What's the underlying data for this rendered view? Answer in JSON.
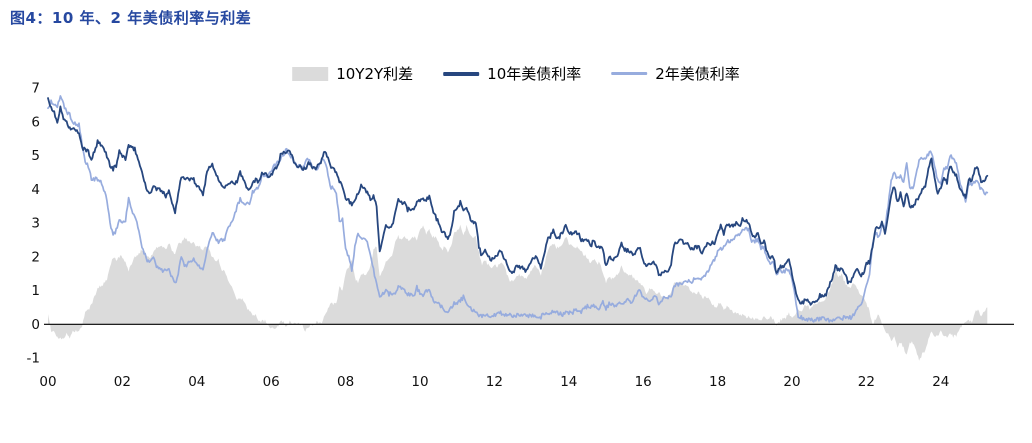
{
  "title": "图4：10 年、2 年美债利率与利差",
  "colors": {
    "title": "#2648A0",
    "axis_text": "#111111",
    "axis_line": "#000000",
    "background": "#ffffff"
  },
  "chart_data": {
    "type": "area+line",
    "title": "10 年、2 年美债利率与利差",
    "x_start_year": 2000,
    "x_frequency": "monthly",
    "x_end": "2025-04",
    "xlim": [
      2000,
      2025.4
    ],
    "ylim": [
      -1,
      7
    ],
    "yticks": [
      7,
      6,
      5,
      4,
      3,
      2,
      1,
      0,
      -1
    ],
    "xtick_labels": [
      "00",
      "02",
      "04",
      "06",
      "08",
      "10",
      "12",
      "14",
      "16",
      "18",
      "20",
      "22",
      "24"
    ],
    "grid": false,
    "legend_position": "top-center",
    "series": [
      {
        "name": "10Y2Y利差",
        "type": "area",
        "color": "#dbdbdb",
        "derived": "us10y_minus_us2y"
      },
      {
        "name": "10年美债利率",
        "type": "line",
        "color": "#27477F",
        "values": [
          6.7,
          6.4,
          6.3,
          6.0,
          6.4,
          6.1,
          6.0,
          5.8,
          5.8,
          5.7,
          5.7,
          5.2,
          5.2,
          5.1,
          4.9,
          5.1,
          5.4,
          5.3,
          5.2,
          5.0,
          4.7,
          4.6,
          4.7,
          5.1,
          5.0,
          4.9,
          5.3,
          5.2,
          5.2,
          4.9,
          4.6,
          4.3,
          3.9,
          3.9,
          4.1,
          4.0,
          4.0,
          3.9,
          3.8,
          4.0,
          3.6,
          3.3,
          3.9,
          4.4,
          4.3,
          4.3,
          4.3,
          4.3,
          4.1,
          4.0,
          3.8,
          4.4,
          4.7,
          4.7,
          4.5,
          4.3,
          4.1,
          4.1,
          4.2,
          4.2,
          4.2,
          4.2,
          4.5,
          4.3,
          4.1,
          4.0,
          4.2,
          4.3,
          4.2,
          4.5,
          4.5,
          4.4,
          4.4,
          4.6,
          4.7,
          5.0,
          5.1,
          5.1,
          5.1,
          4.9,
          4.7,
          4.7,
          4.6,
          4.6,
          4.8,
          4.7,
          4.6,
          4.7,
          4.8,
          5.1,
          5.0,
          4.7,
          4.6,
          4.5,
          4.2,
          4.1,
          3.7,
          3.7,
          3.5,
          3.7,
          3.9,
          4.1,
          4.0,
          3.9,
          3.7,
          3.8,
          3.5,
          2.2,
          2.5,
          2.9,
          2.8,
          2.9,
          3.3,
          3.7,
          3.6,
          3.6,
          3.4,
          3.4,
          3.4,
          3.6,
          3.7,
          3.7,
          3.7,
          3.8,
          3.4,
          3.2,
          3.0,
          2.7,
          2.7,
          2.5,
          2.8,
          3.3,
          3.4,
          3.6,
          3.4,
          3.5,
          3.2,
          3.0,
          3.0,
          2.3,
          2.0,
          2.2,
          2.0,
          1.9,
          2.0,
          2.0,
          2.2,
          2.0,
          1.8,
          1.6,
          1.5,
          1.7,
          1.7,
          1.7,
          1.6,
          1.7,
          1.9,
          2.0,
          1.9,
          1.7,
          2.0,
          2.5,
          2.6,
          2.8,
          2.6,
          2.6,
          2.7,
          3.0,
          2.7,
          2.7,
          2.7,
          2.7,
          2.5,
          2.5,
          2.5,
          2.3,
          2.5,
          2.3,
          2.3,
          2.2,
          1.7,
          2.0,
          1.9,
          2.0,
          2.1,
          2.4,
          2.2,
          2.2,
          2.1,
          2.1,
          2.2,
          2.3,
          1.9,
          1.7,
          1.8,
          1.8,
          1.8,
          1.5,
          1.5,
          1.6,
          1.6,
          1.8,
          2.4,
          2.4,
          2.5,
          2.4,
          2.4,
          2.3,
          2.2,
          2.3,
          2.3,
          2.1,
          2.3,
          2.4,
          2.4,
          2.4,
          2.7,
          2.9,
          2.7,
          3.0,
          2.9,
          2.9,
          3.0,
          2.9,
          3.1,
          3.1,
          3.0,
          2.7,
          2.6,
          2.7,
          2.4,
          2.5,
          2.1,
          2.0,
          2.0,
          1.5,
          1.7,
          1.7,
          1.8,
          1.9,
          1.5,
          1.1,
          0.7,
          0.6,
          0.7,
          0.7,
          0.55,
          0.7,
          0.7,
          0.85,
          0.85,
          0.9,
          1.1,
          1.4,
          1.7,
          1.6,
          1.6,
          1.5,
          1.25,
          1.3,
          1.5,
          1.6,
          1.45,
          1.5,
          1.8,
          1.85,
          2.3,
          2.9,
          2.85,
          3.0,
          2.7,
          3.2,
          3.8,
          4.1,
          3.6,
          3.9,
          3.5,
          3.9,
          3.5,
          3.45,
          3.65,
          3.8,
          4.0,
          4.1,
          4.6,
          4.9,
          4.3,
          3.9,
          4.0,
          4.3,
          4.2,
          4.7,
          4.5,
          4.4,
          4.1,
          3.9,
          3.75,
          4.3,
          4.2,
          4.6,
          4.6,
          4.2,
          4.25,
          4.4
        ]
      },
      {
        "name": "2年美债利率",
        "type": "line",
        "color": "#97ACDE",
        "values": [
          6.4,
          6.6,
          6.5,
          6.4,
          6.8,
          6.5,
          6.3,
          6.2,
          6.0,
          5.9,
          5.9,
          5.3,
          4.8,
          4.7,
          4.3,
          4.3,
          4.3,
          4.2,
          4.0,
          3.7,
          3.0,
          2.6,
          2.8,
          3.1,
          3.0,
          3.1,
          3.7,
          3.4,
          3.2,
          2.9,
          2.4,
          2.1,
          1.9,
          1.9,
          2.0,
          1.7,
          1.7,
          1.6,
          1.6,
          1.6,
          1.4,
          1.2,
          1.5,
          2.0,
          1.7,
          1.8,
          1.9,
          1.9,
          1.8,
          1.7,
          1.6,
          2.1,
          2.5,
          2.7,
          2.6,
          2.4,
          2.5,
          2.5,
          2.9,
          3.0,
          3.2,
          3.5,
          3.7,
          3.6,
          3.6,
          3.6,
          3.9,
          4.0,
          4.1,
          4.4,
          4.4,
          4.4,
          4.5,
          4.7,
          4.8,
          4.9,
          5.0,
          5.2,
          5.0,
          4.9,
          4.7,
          4.7,
          4.6,
          4.8,
          4.9,
          4.7,
          4.6,
          4.6,
          4.8,
          4.9,
          4.6,
          4.1,
          4.0,
          3.9,
          3.1,
          3.1,
          2.2,
          2.0,
          1.6,
          2.3,
          2.7,
          2.6,
          2.5,
          2.4,
          2.0,
          1.6,
          1.2,
          0.8,
          0.9,
          1.0,
          0.9,
          0.9,
          0.9,
          1.1,
          1.1,
          1.0,
          0.9,
          0.9,
          0.8,
          1.1,
          0.9,
          0.8,
          1.0,
          1.0,
          0.8,
          0.6,
          0.6,
          0.5,
          0.4,
          0.4,
          0.5,
          0.6,
          0.6,
          0.7,
          0.8,
          0.6,
          0.5,
          0.4,
          0.4,
          0.2,
          0.25,
          0.3,
          0.25,
          0.25,
          0.25,
          0.3,
          0.35,
          0.27,
          0.3,
          0.3,
          0.22,
          0.27,
          0.25,
          0.3,
          0.25,
          0.25,
          0.27,
          0.25,
          0.25,
          0.22,
          0.3,
          0.36,
          0.31,
          0.4,
          0.33,
          0.31,
          0.28,
          0.38,
          0.33,
          0.32,
          0.44,
          0.41,
          0.37,
          0.46,
          0.53,
          0.49,
          0.57,
          0.5,
          0.47,
          0.67,
          0.45,
          0.62,
          0.56,
          0.58,
          0.61,
          0.64,
          0.67,
          0.74,
          0.63,
          0.73,
          0.93,
          1.05,
          0.78,
          0.78,
          0.72,
          0.78,
          0.88,
          0.58,
          0.66,
          0.81,
          0.77,
          0.84,
          1.12,
          1.19,
          1.2,
          1.26,
          1.27,
          1.27,
          1.28,
          1.38,
          1.35,
          1.33,
          1.48,
          1.6,
          1.78,
          1.89,
          2.14,
          2.25,
          2.27,
          2.49,
          2.43,
          2.53,
          2.67,
          2.63,
          2.82,
          2.87,
          2.79,
          2.49,
          2.46,
          2.52,
          2.27,
          2.27,
          1.95,
          1.75,
          1.87,
          1.5,
          1.62,
          1.52,
          1.61,
          1.57,
          1.31,
          0.86,
          0.23,
          0.2,
          0.16,
          0.15,
          0.11,
          0.13,
          0.13,
          0.15,
          0.16,
          0.12,
          0.11,
          0.14,
          0.16,
          0.16,
          0.14,
          0.25,
          0.19,
          0.21,
          0.28,
          0.5,
          0.57,
          0.73,
          1.18,
          1.44,
          2.34,
          2.72,
          2.56,
          2.96,
          2.88,
          3.5,
          4.28,
          4.48,
          4.31,
          4.43,
          4.2,
          4.81,
          4.03,
          4.01,
          4.4,
          4.9,
          4.88,
          4.86,
          5.04,
          5.09,
          4.68,
          4.25,
          4.21,
          4.62,
          4.62,
          5.0,
          4.87,
          4.75,
          4.26,
          3.92,
          3.64,
          4.17,
          4.15,
          4.24,
          4.2,
          3.99,
          3.89,
          3.9
        ]
      }
    ]
  }
}
